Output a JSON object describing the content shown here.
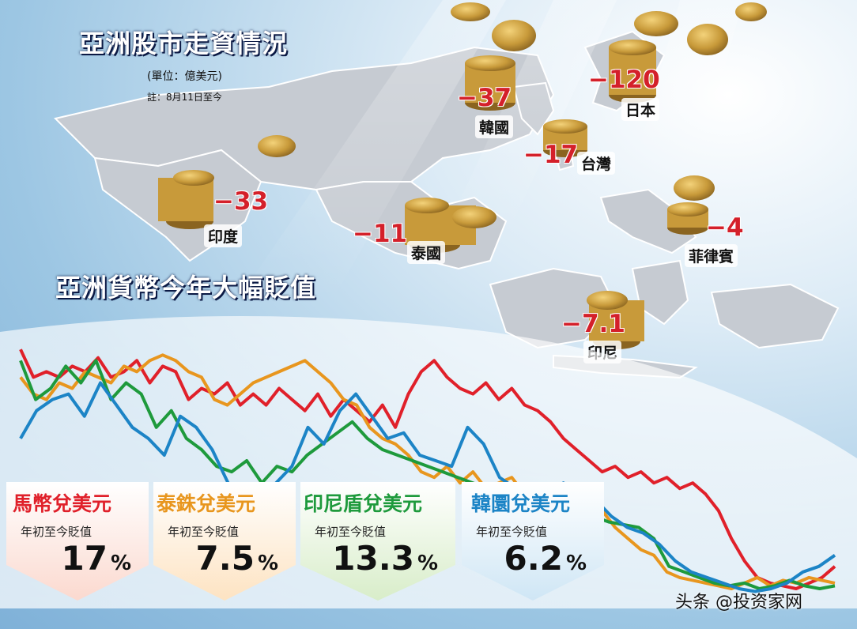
{
  "stock_title": "亞洲股市走資情況",
  "unit_label": "(單位：億美元)",
  "as_of_label": "註：8月11日至今",
  "countries": [
    {
      "name": "韓國",
      "value": "−37"
    },
    {
      "name": "日本",
      "value": "−120"
    },
    {
      "name": "台灣",
      "value": "−17"
    },
    {
      "name": "印度",
      "value": "−33"
    },
    {
      "name": "泰國",
      "value": "−11"
    },
    {
      "name": "菲律賓",
      "value": "−4"
    },
    {
      "name": "印尼",
      "value": "−7.1"
    }
  ],
  "fx_title": "亞洲貨幣今年大幅貶值",
  "currency_cards": [
    {
      "title": "馬幣兌美元",
      "subtitle": "年初至今貶值",
      "value": "17",
      "unit": "%",
      "color": "#e0202a",
      "bg": "#fbd9cf"
    },
    {
      "title": "泰銖兌美元",
      "subtitle": "年初至今貶值",
      "value": "7.5",
      "unit": "%",
      "color": "#e8961e",
      "bg": "#fde3c2"
    },
    {
      "title": "印尼盾兌美元",
      "subtitle": "年初至今貶值",
      "value": "13.3",
      "unit": "%",
      "color": "#1e9a3c",
      "bg": "#d8edc9"
    },
    {
      "title": "韓圜兌美元",
      "subtitle": "年初至今貶值",
      "value": "6.2",
      "unit": "%",
      "color": "#1c84c6",
      "bg": "#cfe6f5"
    }
  ],
  "line_series": [
    {
      "color": "#e0202a",
      "values": [
        88,
        78,
        80,
        78,
        82,
        80,
        85,
        78,
        80,
        84,
        76,
        82,
        80,
        70,
        74,
        72,
        76,
        68,
        72,
        68,
        74,
        70,
        66,
        72,
        64,
        70,
        66,
        62,
        68,
        60,
        72,
        80,
        84,
        78,
        74,
        72,
        76,
        70,
        74,
        68,
        66,
        62,
        56,
        52,
        48,
        44,
        46,
        42,
        44,
        40,
        42,
        38,
        40,
        36,
        30,
        20,
        12,
        6,
        4,
        3,
        2,
        4,
        6,
        10
      ]
    },
    {
      "color": "#e8961e",
      "values": [
        78,
        72,
        70,
        76,
        74,
        80,
        78,
        76,
        82,
        80,
        84,
        86,
        84,
        80,
        78,
        70,
        68,
        72,
        76,
        78,
        80,
        82,
        84,
        80,
        76,
        70,
        68,
        60,
        56,
        54,
        50,
        44,
        42,
        46,
        40,
        44,
        38,
        40,
        42,
        36,
        38,
        36,
        34,
        38,
        32,
        30,
        24,
        20,
        16,
        14,
        8,
        6,
        5,
        4,
        3,
        2,
        4,
        6,
        3,
        5,
        4,
        6,
        5,
        4
      ]
    },
    {
      "color": "#1e9a3c",
      "values": [
        84,
        70,
        74,
        82,
        76,
        84,
        70,
        76,
        72,
        60,
        66,
        56,
        52,
        46,
        44,
        48,
        40,
        46,
        44,
        50,
        54,
        58,
        62,
        56,
        52,
        50,
        48,
        46,
        44,
        42,
        40,
        38,
        36,
        34,
        32,
        30,
        28,
        30,
        28,
        26,
        25,
        24,
        20,
        10,
        8,
        6,
        4,
        3,
        4,
        2,
        3,
        5,
        3,
        2,
        3
      ]
    },
    {
      "color": "#1c84c6",
      "values": [
        56,
        66,
        70,
        72,
        64,
        76,
        68,
        60,
        56,
        50,
        64,
        60,
        52,
        40,
        36,
        28,
        40,
        46,
        60,
        54,
        66,
        72,
        64,
        56,
        58,
        50,
        48,
        46,
        60,
        54,
        42,
        38,
        34,
        36,
        40,
        30,
        34,
        28,
        24,
        22,
        18,
        12,
        8,
        6,
        4,
        2,
        1,
        2,
        4,
        8,
        10,
        14
      ]
    }
  ]
}
